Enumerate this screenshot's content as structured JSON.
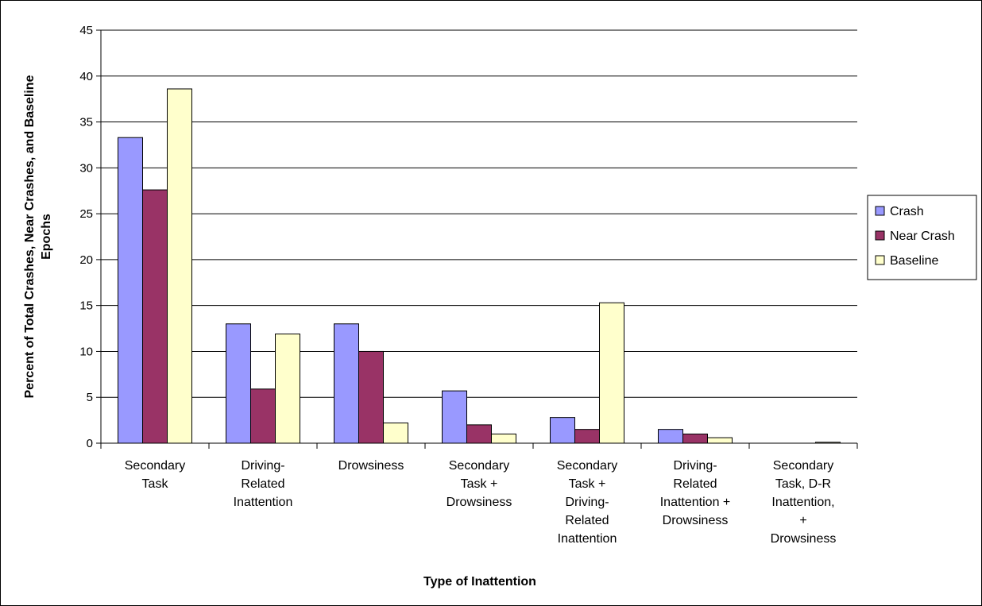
{
  "chart_data": {
    "type": "bar",
    "title": "",
    "xlabel": "Type of Inattention",
    "ylabel_lines": [
      "Percent of Total Crashes, Near Crashes, and Baseline",
      "Epochs"
    ],
    "ylim": [
      0,
      45
    ],
    "yticks": [
      0,
      5,
      10,
      15,
      20,
      25,
      30,
      35,
      40,
      45
    ],
    "grid": true,
    "legend_position": "right",
    "categories": [
      [
        "Secondary",
        "Task"
      ],
      [
        "Driving-",
        "Related",
        "Inattention"
      ],
      [
        "Drowsiness"
      ],
      [
        "Secondary",
        "Task +",
        "Drowsiness"
      ],
      [
        "Secondary",
        "Task +",
        "Driving-",
        "Related",
        "Inattention"
      ],
      [
        "Driving-",
        "Related",
        "Inattention +",
        "Drowsiness"
      ],
      [
        "Secondary",
        "Task, D-R",
        "Inattention,",
        "+",
        "Drowsiness"
      ]
    ],
    "series": [
      {
        "name": "Crash",
        "color": "#9999FF",
        "values": [
          33.3,
          13.0,
          13.0,
          5.7,
          2.8,
          1.5,
          0
        ]
      },
      {
        "name": "Near Crash",
        "color": "#993366",
        "values": [
          27.6,
          5.9,
          10.0,
          2.0,
          1.5,
          1.0,
          0
        ]
      },
      {
        "name": "Baseline",
        "color": "#FFFFCC",
        "values": [
          38.6,
          11.9,
          2.2,
          1.0,
          15.3,
          0.6,
          0.1
        ]
      }
    ]
  }
}
